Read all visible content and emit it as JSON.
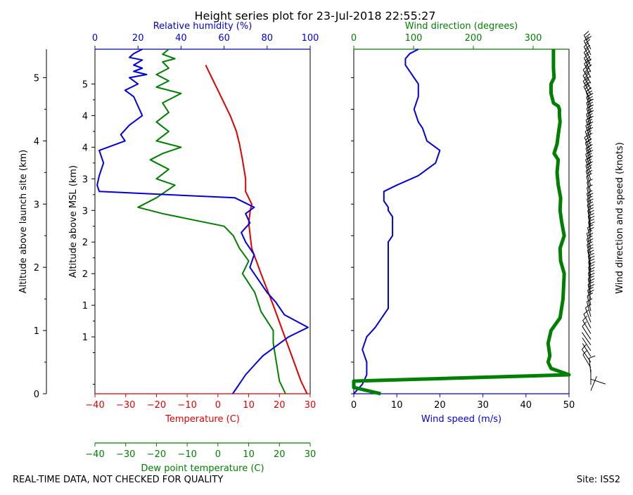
{
  "title": "Height series plot for 23-Jul-2018 22:55:27",
  "footer_left": "REAL-TIME DATA, NOT CHECKED FOR QUALITY",
  "footer_right": "Site: ISS2",
  "colors": {
    "temperature": "#e00000",
    "dewpoint": "#008000",
    "rh": "#0000e0",
    "wind_speed": "#0000e0",
    "wind_dir": "#008000",
    "barb": "#000000"
  },
  "chart_data": [
    {
      "type": "line",
      "name": "thermo-panel",
      "ylabel_outer": "Altitude above launch site (km)",
      "ylabel_inner": "Altitude above MSL (km)",
      "xlabel_bottom": "Temperature (C)",
      "xlabel_dewpoint": "Dew point temperature (C)",
      "xlabel_top": "Relative humidity (%)",
      "temp_ticks": [
        "−40",
        "−30",
        "−20",
        "−10",
        "0",
        "10",
        "20",
        "30"
      ],
      "dewpoint_ticks": [
        "−40",
        "−30",
        "−20",
        "−10",
        "0",
        "10",
        "20",
        "30"
      ],
      "rh_ticks": [
        "0",
        "20",
        "40",
        "60",
        "80",
        "100"
      ],
      "launch_ticks": [
        "0",
        "1",
        "2",
        "3",
        "4",
        "5"
      ],
      "msl_ticks": [
        "1",
        "1",
        "2",
        "2",
        "3",
        "3",
        "4",
        "4",
        "5"
      ],
      "xlim_temperature": [
        -40,
        30
      ],
      "xlim_rh": [
        0,
        100
      ],
      "ylim_km": [
        0,
        5.45
      ],
      "series": [
        {
          "name": "Temperature",
          "key": "temperature",
          "axis": "temperature",
          "x": [
            29,
            27,
            24,
            21,
            18,
            14,
            11,
            10,
            10.5,
            11,
            9,
            9,
            8,
            7,
            6,
            4,
            2,
            0,
            -2,
            -4
          ],
          "y": [
            0,
            0.2,
            0.6,
            1.0,
            1.4,
            1.9,
            2.3,
            2.7,
            2.9,
            3.0,
            3.2,
            3.4,
            3.7,
            3.95,
            4.15,
            4.4,
            4.6,
            4.8,
            5.0,
            5.2
          ]
        },
        {
          "name": "Dew point",
          "key": "dewpoint",
          "axis": "temperature",
          "x": [
            22,
            20,
            19,
            18,
            18,
            14,
            12,
            8,
            10,
            7,
            5,
            2,
            -8,
            -18,
            -26,
            -20,
            -14,
            -20,
            -16,
            -22,
            -18,
            -12,
            -20,
            -16,
            -20,
            -16,
            -18,
            -12,
            -20,
            -16,
            -20,
            -16,
            -18,
            -14,
            -18,
            -16
          ],
          "y": [
            0,
            0.2,
            0.5,
            0.8,
            1.0,
            1.3,
            1.6,
            1.9,
            2.1,
            2.3,
            2.5,
            2.65,
            2.75,
            2.85,
            2.95,
            3.1,
            3.3,
            3.4,
            3.55,
            3.7,
            3.8,
            3.9,
            4.0,
            4.15,
            4.3,
            4.45,
            4.6,
            4.75,
            4.85,
            4.95,
            5.05,
            5.15,
            5.25,
            5.3,
            5.37,
            5.45
          ]
        },
        {
          "name": "Relative humidity",
          "key": "rh",
          "axis": "rh",
          "x": [
            64,
            66,
            68,
            70,
            74,
            78,
            84,
            90,
            99,
            88,
            84,
            80,
            76,
            72,
            74,
            70,
            68,
            72,
            70,
            74,
            68,
            65,
            2,
            1,
            2,
            4,
            2,
            14,
            12,
            16,
            22,
            20,
            18,
            14,
            20,
            16,
            24,
            18,
            22,
            18,
            22,
            16,
            18,
            22
          ],
          "y": [
            0,
            0.1,
            0.2,
            0.3,
            0.45,
            0.6,
            0.75,
            0.9,
            1.05,
            1.25,
            1.45,
            1.6,
            1.8,
            2.0,
            2.2,
            2.4,
            2.55,
            2.7,
            2.85,
            2.95,
            3.05,
            3.1,
            3.2,
            3.3,
            3.45,
            3.65,
            3.85,
            4.0,
            4.1,
            4.25,
            4.4,
            4.55,
            4.7,
            4.8,
            4.9,
            5.0,
            5.05,
            5.1,
            5.15,
            5.2,
            5.28,
            5.32,
            5.38,
            5.45
          ]
        }
      ]
    },
    {
      "type": "line",
      "name": "wind-panel",
      "xlabel_bottom": "Wind speed (m/s)",
      "xlabel_top": "Wind direction (degrees)",
      "ylabel_right": "Wind direction and speed (knots)",
      "speed_ticks": [
        "0",
        "10",
        "20",
        "30",
        "40",
        "50"
      ],
      "dir_ticks": [
        "0",
        "100",
        "200",
        "300"
      ],
      "xlim_speed": [
        0,
        50
      ],
      "xlim_dir": [
        0,
        360
      ],
      "ylim_km": [
        0,
        5.45
      ],
      "series": [
        {
          "name": "Wind speed",
          "key": "wind_speed",
          "axis": "speed",
          "x": [
            0,
            2,
            3,
            3,
            2,
            3,
            5,
            6,
            7,
            8,
            8,
            8,
            8,
            8,
            9,
            9,
            9,
            8,
            8,
            7,
            7,
            10,
            15,
            19,
            20,
            17,
            16,
            15,
            14,
            15,
            15,
            14,
            13,
            12,
            12,
            13,
            15
          ],
          "y": [
            0,
            0.15,
            0.3,
            0.5,
            0.7,
            0.9,
            1.05,
            1.15,
            1.25,
            1.35,
            1.5,
            1.8,
            2.2,
            2.4,
            2.5,
            2.7,
            2.8,
            2.9,
            2.95,
            3.05,
            3.2,
            3.3,
            3.45,
            3.65,
            3.85,
            4.0,
            4.2,
            4.3,
            4.5,
            4.7,
            4.9,
            5.0,
            5.1,
            5.2,
            5.3,
            5.38,
            5.45
          ]
        },
        {
          "name": "Wind direction",
          "key": "wind_dir",
          "axis": "dir",
          "x": [
            45,
            0,
            0,
            360,
            330,
            325,
            328,
            325,
            330,
            345,
            350,
            352,
            346,
            345,
            352,
            348,
            345,
            346,
            342,
            340,
            342,
            335,
            340,
            342,
            345,
            344,
            344,
            342,
            334,
            330,
            330,
            335,
            334,
            334,
            334
          ],
          "y": [
            0,
            0.1,
            0.2,
            0.3,
            0.4,
            0.5,
            0.6,
            0.8,
            1.0,
            1.2,
            1.5,
            1.9,
            2.1,
            2.3,
            2.5,
            2.7,
            2.9,
            3.1,
            3.3,
            3.5,
            3.7,
            3.8,
            3.95,
            4.1,
            4.3,
            4.4,
            4.5,
            4.55,
            4.6,
            4.75,
            4.9,
            5.0,
            5.15,
            5.3,
            5.45
          ]
        }
      ]
    }
  ]
}
